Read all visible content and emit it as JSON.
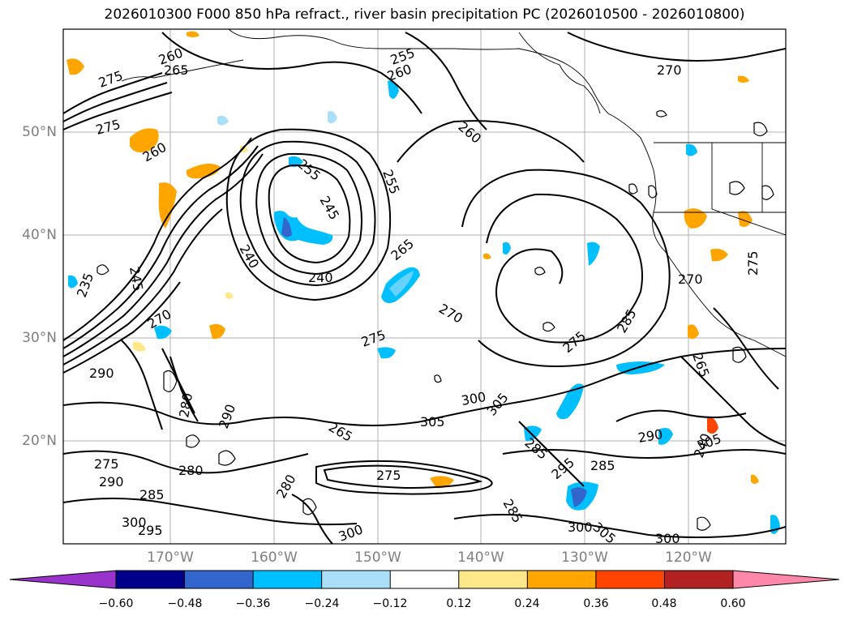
{
  "title": "2026010300 F000 850 hPa refract., river basin precipitation PC (2026010500 - 2026010800)",
  "map": {
    "lat_labels": [
      "50°N",
      "40°N",
      "30°N",
      "20°N"
    ],
    "lon_labels": [
      "170°W",
      "160°W",
      "150°W",
      "140°W",
      "130°W",
      "120°W"
    ],
    "contour_labels": [
      "260",
      "265",
      "255",
      "260",
      "275",
      "255",
      "270",
      "275",
      "260",
      "260",
      "255",
      "245",
      "240",
      "240",
      "265",
      "270",
      "275",
      "235",
      "245",
      "270",
      "290",
      "280",
      "290",
      "275",
      "265",
      "280",
      "290",
      "285",
      "300",
      "300",
      "295",
      "305",
      "300",
      "305",
      "285",
      "275",
      "280",
      "285",
      "295",
      "290",
      "285",
      "300",
      "305",
      "300",
      "305",
      "240",
      "265",
      "275",
      "285",
      "270",
      "275"
    ]
  },
  "colorbar": {
    "colors": [
      "#9933cc",
      "#00008b",
      "#3366cc",
      "#00bfff",
      "#aadff9",
      "#ffffff",
      "#ffe88a",
      "#ffa500",
      "#ff4500",
      "#b22222",
      "#ff88aa",
      "#ff88aa"
    ],
    "extend_colors": {
      "low": "#9933cc",
      "high": "#ff88aa"
    },
    "boxes": [
      "#00008b",
      "#3366cc",
      "#00bfff",
      "#aadff9",
      "#ffffff",
      "#ffe88a",
      "#ffa500",
      "#ff4500",
      "#b22222"
    ],
    "tick_labels": [
      "−0.60",
      "−0.48",
      "−0.36",
      "−0.24",
      "−0.12",
      "0.12",
      "0.24",
      "0.36",
      "0.48",
      "0.60"
    ]
  }
}
